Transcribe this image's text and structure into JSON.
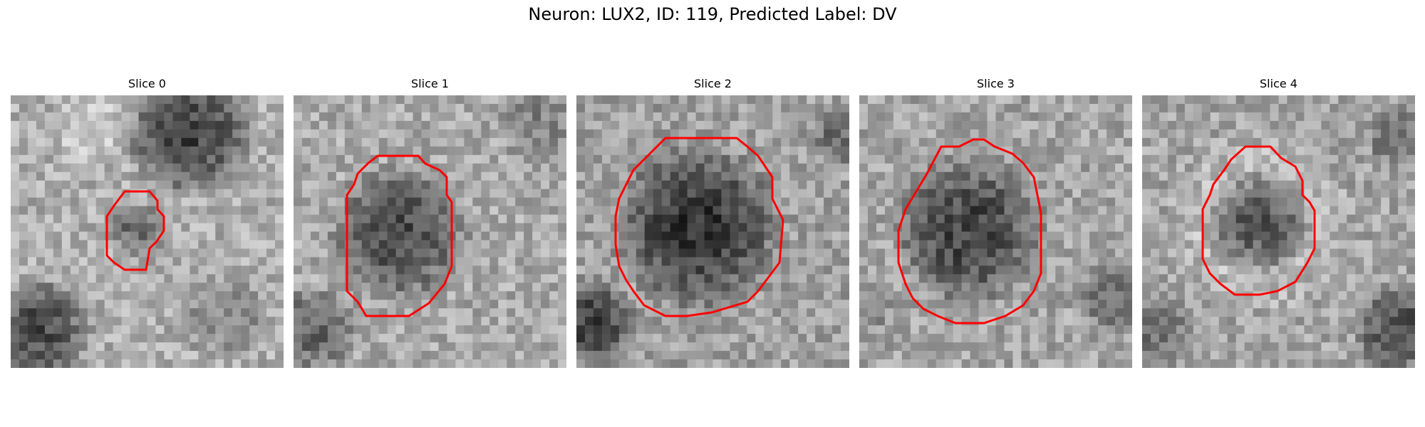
{
  "figure": {
    "title": "Neuron: LUX2, ID: 119, Predicted Label: DV",
    "outline_color": "#ff0000",
    "colormap": "grayscale"
  },
  "panels": [
    {
      "title": "Slice 0",
      "texture": "bright mottled field, dark mass at upper-right, dark lower-left corner"
    },
    {
      "title": "Slice 1",
      "texture": "mottled field, larger dark cell body in center"
    },
    {
      "title": "Slice 2",
      "texture": "large dark cell body filling center, dark lower-left corner"
    },
    {
      "title": "Slice 3",
      "texture": "large dark cell body, noisy surround"
    },
    {
      "title": "Slice 4",
      "texture": "dark core surrounded by bright ring"
    }
  ]
}
